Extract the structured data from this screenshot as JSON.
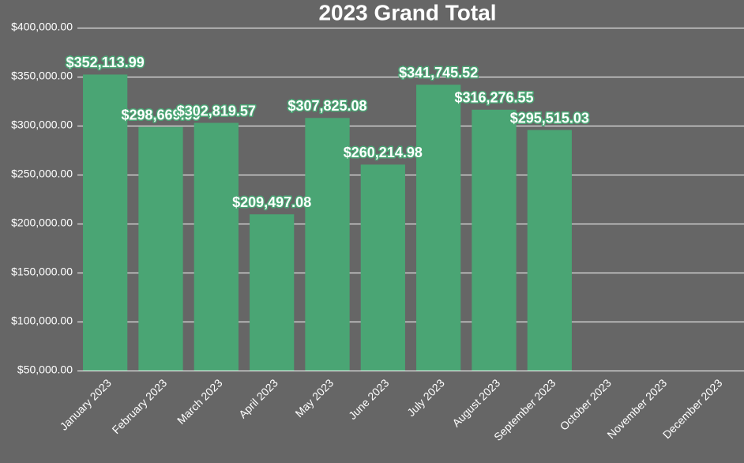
{
  "chart_data": {
    "type": "bar",
    "title": "2023 Grand Total",
    "categories": [
      "January 2023",
      "February 2023",
      "March 2023",
      "April 2023",
      "May 2023",
      "June 2023",
      "July 2023",
      "August 2023",
      "September 2023",
      "October 2023",
      "November 2023",
      "December 2023"
    ],
    "values": [
      352113.99,
      298669.99,
      302819.57,
      209497.08,
      307825.08,
      260214.98,
      341745.52,
      316276.55,
      295515.03,
      null,
      null,
      null
    ],
    "value_labels": [
      "$352,113.99",
      "$298,669.99",
      "$302,819.57",
      "$209,497.08",
      "$307,825.08",
      "$260,214.98",
      "$341,745.52",
      "$316,276.55",
      "$295,515.03",
      null,
      null,
      null
    ],
    "color": "#4aa574",
    "ylim": [
      50000,
      400000
    ],
    "yticks": [
      {
        "value": 50000,
        "label": "$50,000.00"
      },
      {
        "value": 100000,
        "label": "$100,000.00"
      },
      {
        "value": 150000,
        "label": "$150,000.00"
      },
      {
        "value": 200000,
        "label": "$200,000.00"
      },
      {
        "value": 250000,
        "label": "$250,000.00"
      },
      {
        "value": 300000,
        "label": "$300,000.00"
      },
      {
        "value": 350000,
        "label": "$350,000.00"
      },
      {
        "value": 400000,
        "label": "$400,000.00"
      }
    ],
    "grid": true
  }
}
